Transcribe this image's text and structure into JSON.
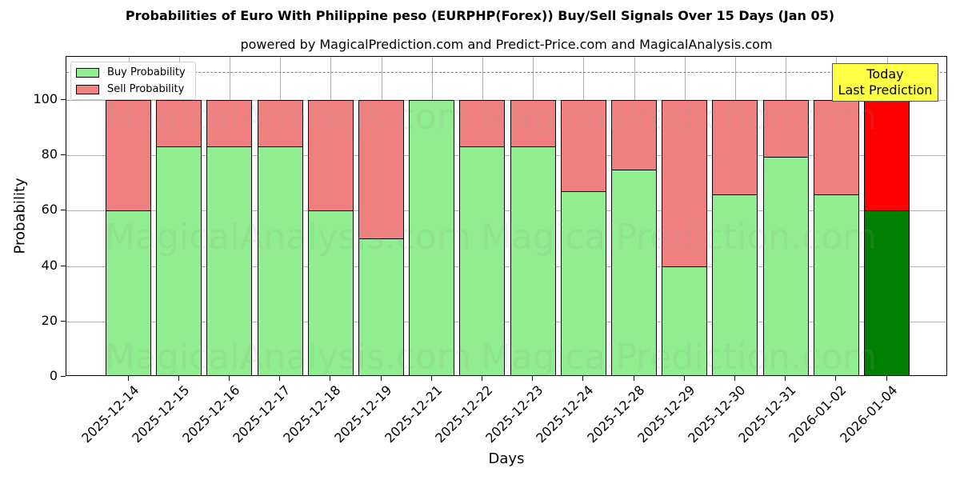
{
  "header": {
    "title": "Probabilities of Euro With Philippine peso (EURPHP(Forex)) Buy/Sell Signals Over 15 Days (Jan 05)",
    "subtitle": "powered by MagicalPrediction.com and Predict-Price.com and MagicalAnalysis.com"
  },
  "legend": {
    "buy_label": "Buy Probability",
    "sell_label": "Sell Probability"
  },
  "annotation": {
    "line1": "Today",
    "line2": "Last Prediction"
  },
  "watermarks": [
    "MagicalAnalysis.com",
    "MagicalPrediction.com"
  ],
  "colors": {
    "buy": "#90ee90",
    "sell": "#f08080",
    "today_buy": "#008000",
    "today_sell": "#ff0000",
    "annotation_bg": "#ffff44"
  },
  "chart_data": {
    "type": "bar",
    "stacked": true,
    "title": "Probabilities of Euro With Philippine peso (EURPHP(Forex)) Buy/Sell Signals Over 15 Days (Jan 05)",
    "subtitle": "powered by MagicalPrediction.com and Predict-Price.com and MagicalAnalysis.com",
    "xlabel": "Days",
    "ylabel": "Probability",
    "ylim": [
      0,
      115
    ],
    "yticks": [
      0,
      20,
      40,
      60,
      80,
      100
    ],
    "grid": true,
    "legend_position": "upper left",
    "reference_line": 110,
    "categories": [
      "2025-12-14",
      "2025-12-15",
      "2025-12-16",
      "2025-12-17",
      "2025-12-18",
      "2025-12-19",
      "2025-12-21",
      "2025-12-22",
      "2025-12-23",
      "2025-12-24",
      "2025-12-28",
      "2025-12-29",
      "2025-12-30",
      "2025-12-31",
      "2026-01-02",
      "2026-01-04"
    ],
    "series": [
      {
        "name": "Buy Probability",
        "values": [
          60,
          83.3,
          83.3,
          83.3,
          60,
          50,
          100,
          83.3,
          83.3,
          67,
          75,
          40,
          66,
          79.5,
          66,
          60
        ]
      },
      {
        "name": "Sell Probability",
        "values": [
          40,
          16.7,
          16.7,
          16.7,
          40,
          50,
          0,
          16.7,
          16.7,
          33,
          25,
          60,
          34,
          20.5,
          34,
          40
        ]
      }
    ],
    "annotations": [
      {
        "text": "Today\nLast Prediction",
        "x": "2026-01-04"
      }
    ]
  }
}
